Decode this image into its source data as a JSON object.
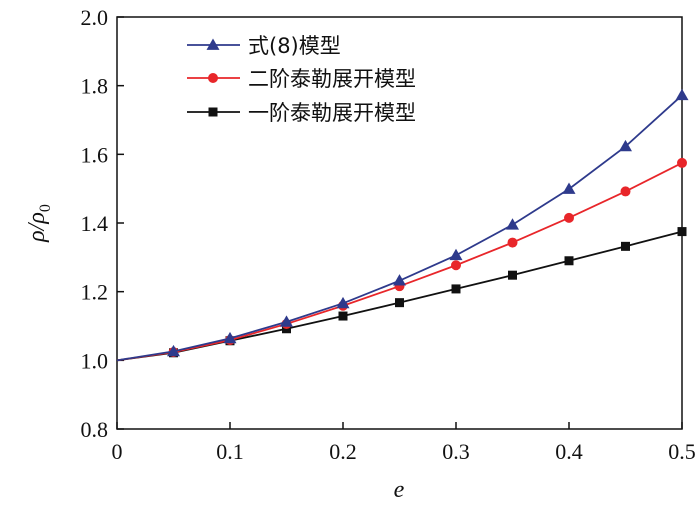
{
  "chart_data": {
    "type": "line",
    "xlabel": "e",
    "ylabel": "ρ/ρ",
    "ylabel_subscript": "0",
    "xlim": [
      0,
      0.5
    ],
    "ylim": [
      0.8,
      2.0
    ],
    "x_ticks": [
      "0",
      "0.1",
      "0.2",
      "0.3",
      "0.4",
      "0.5"
    ],
    "y_ticks": [
      "0.8",
      "1.0",
      "1.2",
      "1.4",
      "1.6",
      "1.8",
      "2.0"
    ],
    "x_tick_values": [
      0,
      0.1,
      0.2,
      0.3,
      0.4,
      0.5
    ],
    "y_tick_values": [
      0.8,
      1.0,
      1.2,
      1.4,
      1.6,
      1.8,
      2.0
    ],
    "grid": false,
    "legend_position": "top-left",
    "x": [
      0,
      0.05,
      0.1,
      0.15,
      0.2,
      0.25,
      0.3,
      0.35,
      0.4,
      0.45,
      0.5
    ],
    "series": [
      {
        "name": "式(8)模型",
        "color": "#2e3a8c",
        "marker": "triangle",
        "values": [
          1.0,
          1.026,
          1.064,
          1.112,
          1.166,
          1.232,
          1.306,
          1.395,
          1.499,
          1.623,
          1.772
        ]
      },
      {
        "name": "二阶泰勒展开模型",
        "color": "#e8262a",
        "marker": "circle",
        "values": [
          1.0,
          1.024,
          1.059,
          1.106,
          1.159,
          1.216,
          1.277,
          1.343,
          1.415,
          1.492,
          1.575
        ]
      },
      {
        "name": "一阶泰勒展开模型",
        "color": "#111111",
        "marker": "square",
        "values": [
          1.0,
          1.022,
          1.057,
          1.092,
          1.129,
          1.168,
          1.208,
          1.248,
          1.29,
          1.332,
          1.375
        ]
      }
    ]
  }
}
